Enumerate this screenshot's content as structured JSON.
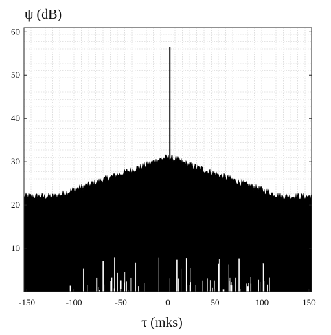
{
  "chart_data": {
    "type": "line",
    "title": "",
    "xlabel": "τ (mks)",
    "ylabel": "ψ (dB)",
    "xlim": [
      -153,
      153
    ],
    "ylim": [
      0,
      61
    ],
    "x_ticks": [
      -150,
      -100,
      -50,
      0,
      50,
      100,
      150
    ],
    "y_ticks": [
      10,
      20,
      30,
      40,
      50,
      60
    ],
    "x_tick_labels": [
      "-150",
      "-100",
      "-50",
      "0",
      "50",
      "100",
      "150"
    ],
    "y_tick_labels": [
      "10",
      "20",
      "30",
      "40",
      "50",
      "60"
    ],
    "grid": true,
    "series": [
      {
        "x": [
          -153,
          -140,
          -120,
          -100,
          -80,
          -60,
          -40,
          -20,
          -10,
          0,
          10,
          20,
          40,
          60,
          80,
          100,
          120,
          140,
          153
        ],
        "y": [
          22,
          22,
          22,
          23.5,
          25,
          26.5,
          28,
          29.5,
          30.5,
          31,
          30.5,
          29.5,
          28,
          26.5,
          25,
          23.5,
          22,
          22,
          22
        ]
      }
    ],
    "peak": {
      "x": 2,
      "y": 56.5
    },
    "color": "#000000"
  }
}
